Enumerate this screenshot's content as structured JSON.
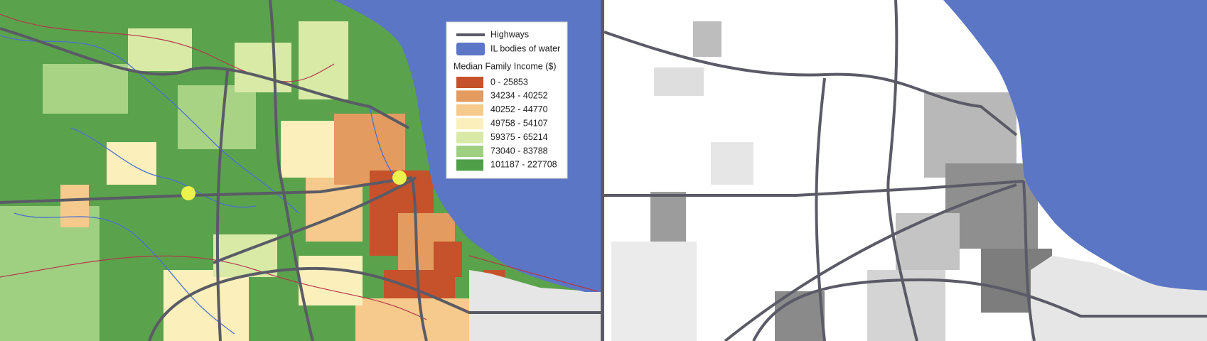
{
  "legend": {
    "highways": "Highways",
    "highway_color": "#5a5b66",
    "water": "IL bodies of water",
    "water_color": "#5b76c4",
    "income_title": "Median Family Income ($)",
    "classes": [
      {
        "label": "0 - 25853",
        "color": "#c5522b"
      },
      {
        "label": "34234 - 40252",
        "color": "#e39b60"
      },
      {
        "label": "40252 - 44770",
        "color": "#f6ca8c"
      },
      {
        "label": "49758 - 54107",
        "color": "#fbf0bb"
      },
      {
        "label": "59375 - 65214",
        "color": "#d9eaa7"
      },
      {
        "label": "73040 - 83788",
        "color": "#9fcf80"
      },
      {
        "label": "101187 - 227708",
        "color": "#4f9e48"
      }
    ]
  }
}
